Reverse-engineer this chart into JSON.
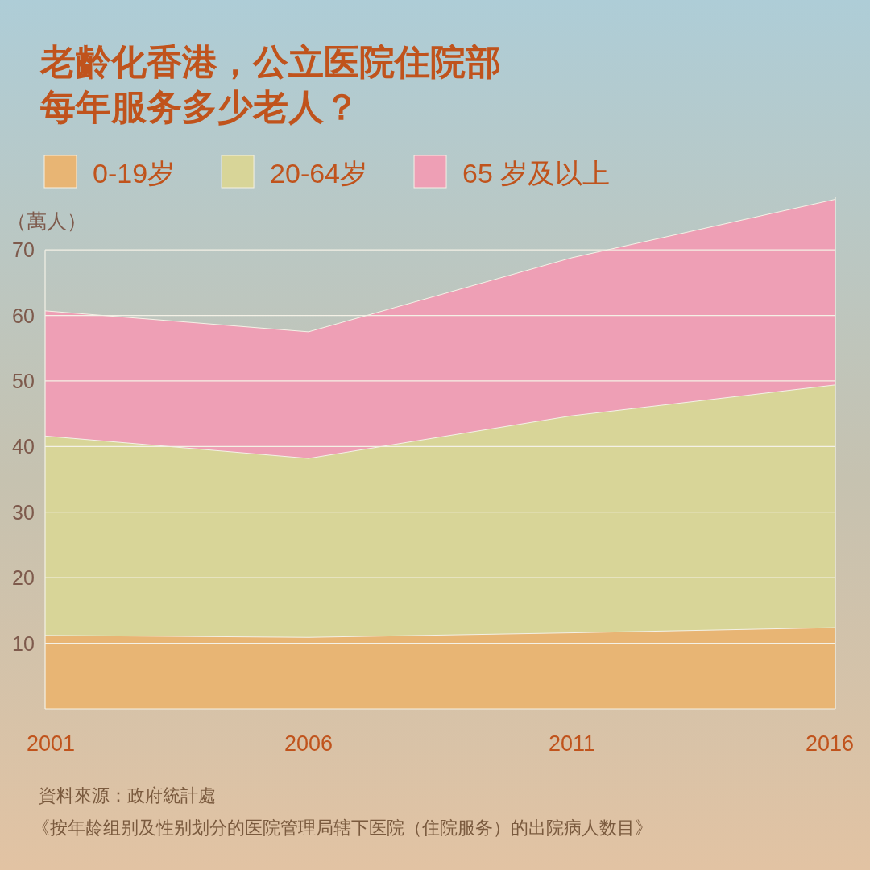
{
  "chart_data": {
    "type": "area",
    "stacked": true,
    "title": "老齡化香港，公立医院住院部每年服务多少老人？",
    "ylabel": "（萬人）",
    "x": [
      2001,
      2006,
      2011,
      2016
    ],
    "xlim": [
      2001,
      2016
    ],
    "xticks": [
      2001,
      2006,
      2011,
      2016
    ],
    "ylim": [
      0,
      78
    ],
    "yticks": [
      10,
      20,
      30,
      40,
      50,
      60,
      70
    ],
    "grid": "y",
    "legend": "top",
    "series": [
      {
        "name": "0-19岁",
        "color": "#e8b574",
        "values": [
          11.2,
          10.9,
          11.6,
          12.4
        ]
      },
      {
        "name": "20-64岁",
        "color": "#d8d598",
        "values": [
          30.4,
          27.3,
          33.1,
          37.0
        ]
      },
      {
        "name": "65 岁及以上",
        "color": "#ee9fb5",
        "values": [
          19.1,
          19.3,
          24.1,
          28.3
        ]
      }
    ],
    "annotations": [
      "資料來源：政府統計處",
      "《按年龄组别及性别划分的医院管理局辖下医院（住院服务）的出院病人数目》"
    ]
  }
}
